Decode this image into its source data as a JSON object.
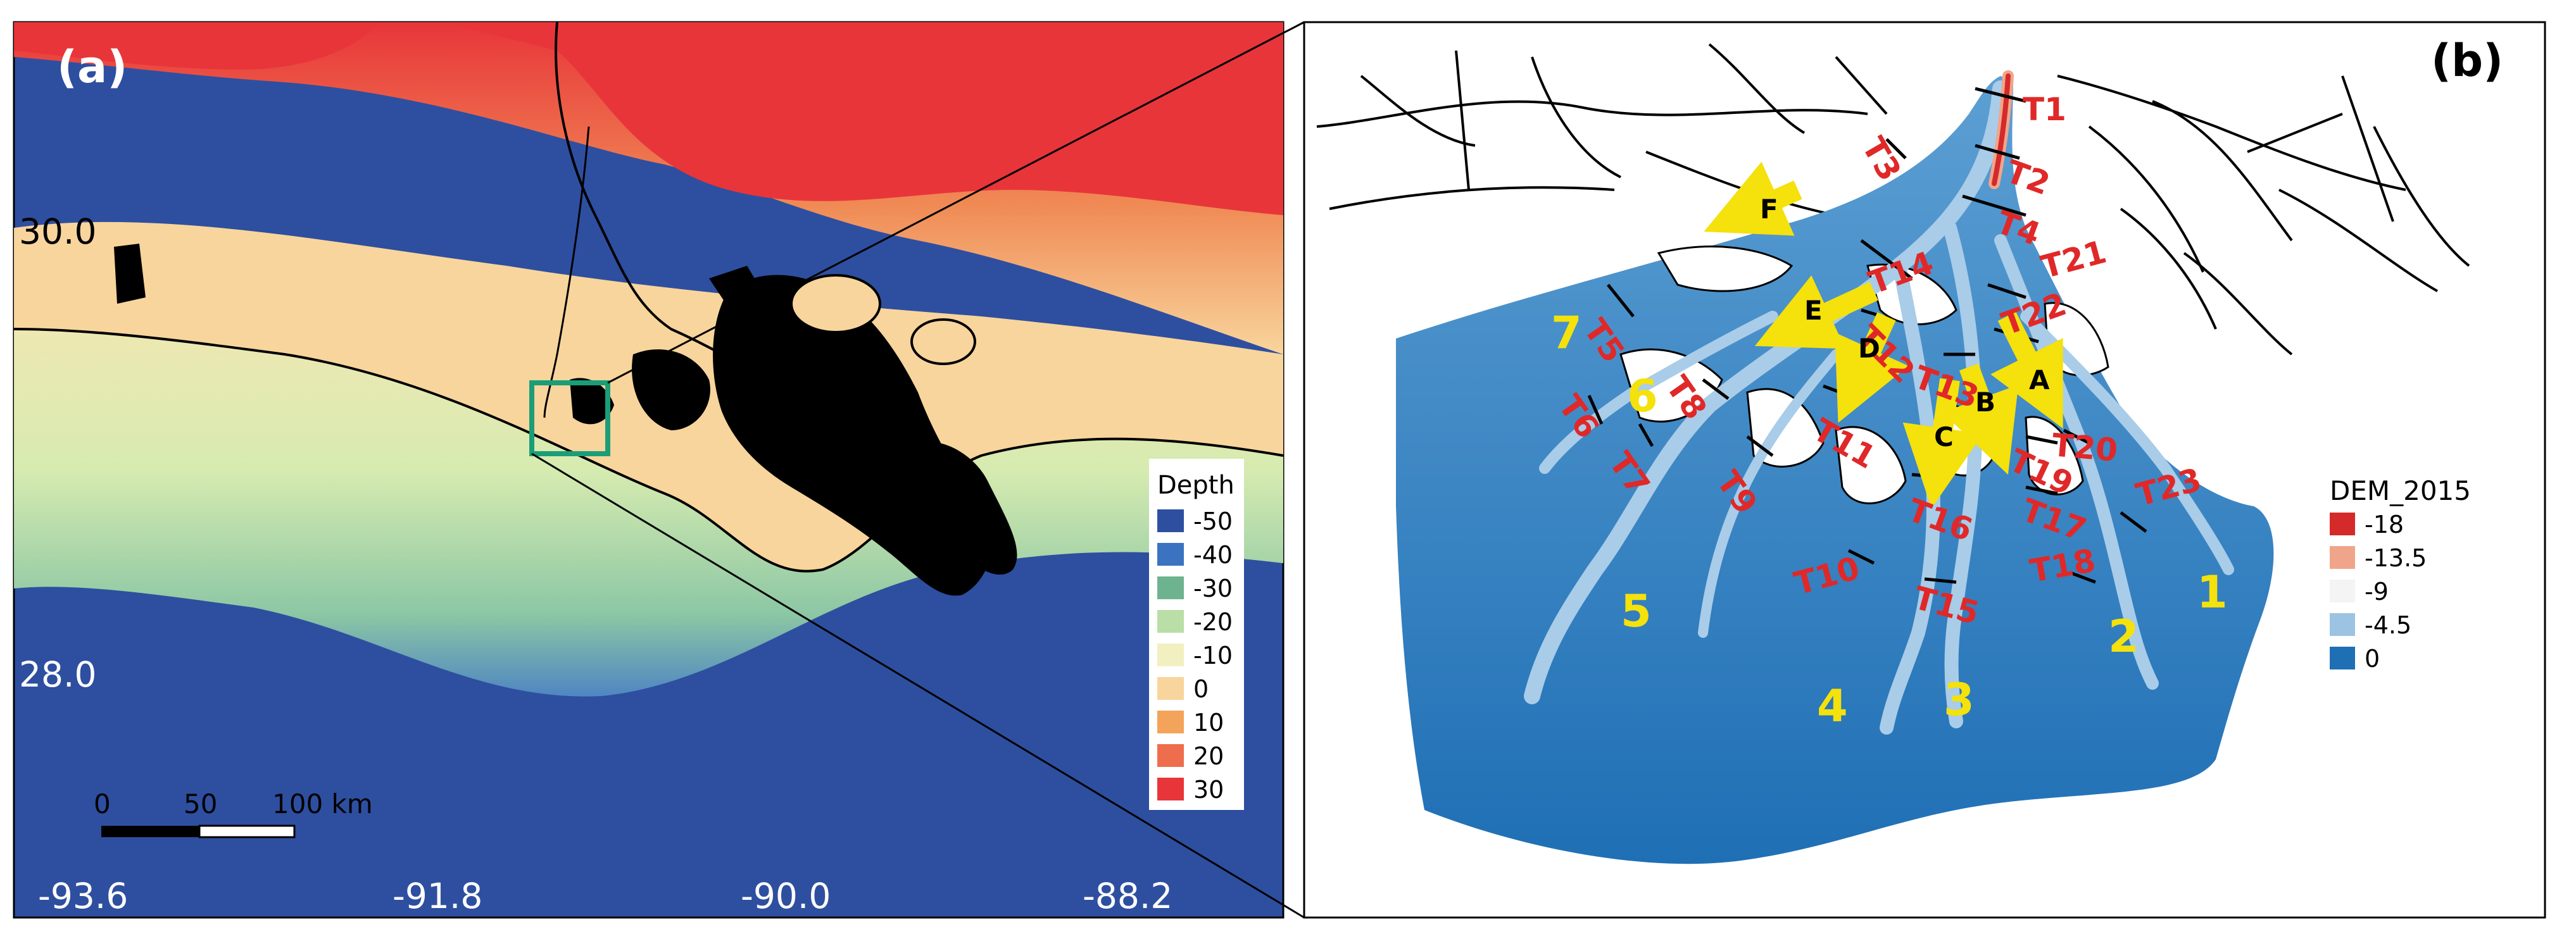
{
  "panel_a": {
    "label": "(a)",
    "lat_labels": [
      "30.0",
      "28.0"
    ],
    "lon_labels": [
      "-93.6",
      "-91.8",
      "-90.0",
      "-88.2"
    ],
    "legend": {
      "title": "Depth",
      "items": [
        {
          "label": "-50",
          "color": "#2e4fa0"
        },
        {
          "label": "-40",
          "color": "#3b73c0"
        },
        {
          "label": "-30",
          "color": "#6eb38f"
        },
        {
          "label": "-20",
          "color": "#b9dea6"
        },
        {
          "label": "-10",
          "color": "#f2f0c0"
        },
        {
          "label": "0",
          "color": "#f8d59c"
        },
        {
          "label": "10",
          "color": "#f4a35a"
        },
        {
          "label": "20",
          "color": "#ee6d4c"
        },
        {
          "label": "30",
          "color": "#e8353a"
        }
      ]
    },
    "scalebar": {
      "labels": [
        "0",
        "50",
        "100 km"
      ]
    }
  },
  "panel_b": {
    "label": "(b)",
    "legend": {
      "title": "DEM_2015",
      "items": [
        {
          "label": "-18",
          "color": "#d42a2a"
        },
        {
          "label": "-13.5",
          "color": "#f0a58a"
        },
        {
          "label": "-9",
          "color": "#f4f4f4"
        },
        {
          "label": "-4.5",
          "color": "#9cc3e2"
        },
        {
          "label": "0",
          "color": "#1f6fb5"
        }
      ]
    },
    "transects": [
      "T1",
      "T2",
      "T3",
      "T4",
      "T5",
      "T6",
      "T7",
      "T8",
      "T9",
      "T10",
      "T11",
      "T12",
      "T13",
      "T14",
      "T15",
      "T16",
      "T17",
      "T18",
      "T19",
      "T20",
      "T21",
      "T22",
      "T23"
    ],
    "outlets": [
      "1",
      "2",
      "3",
      "4",
      "5",
      "6",
      "7"
    ],
    "junctions": [
      "A",
      "B",
      "C",
      "D",
      "E",
      "F"
    ]
  }
}
